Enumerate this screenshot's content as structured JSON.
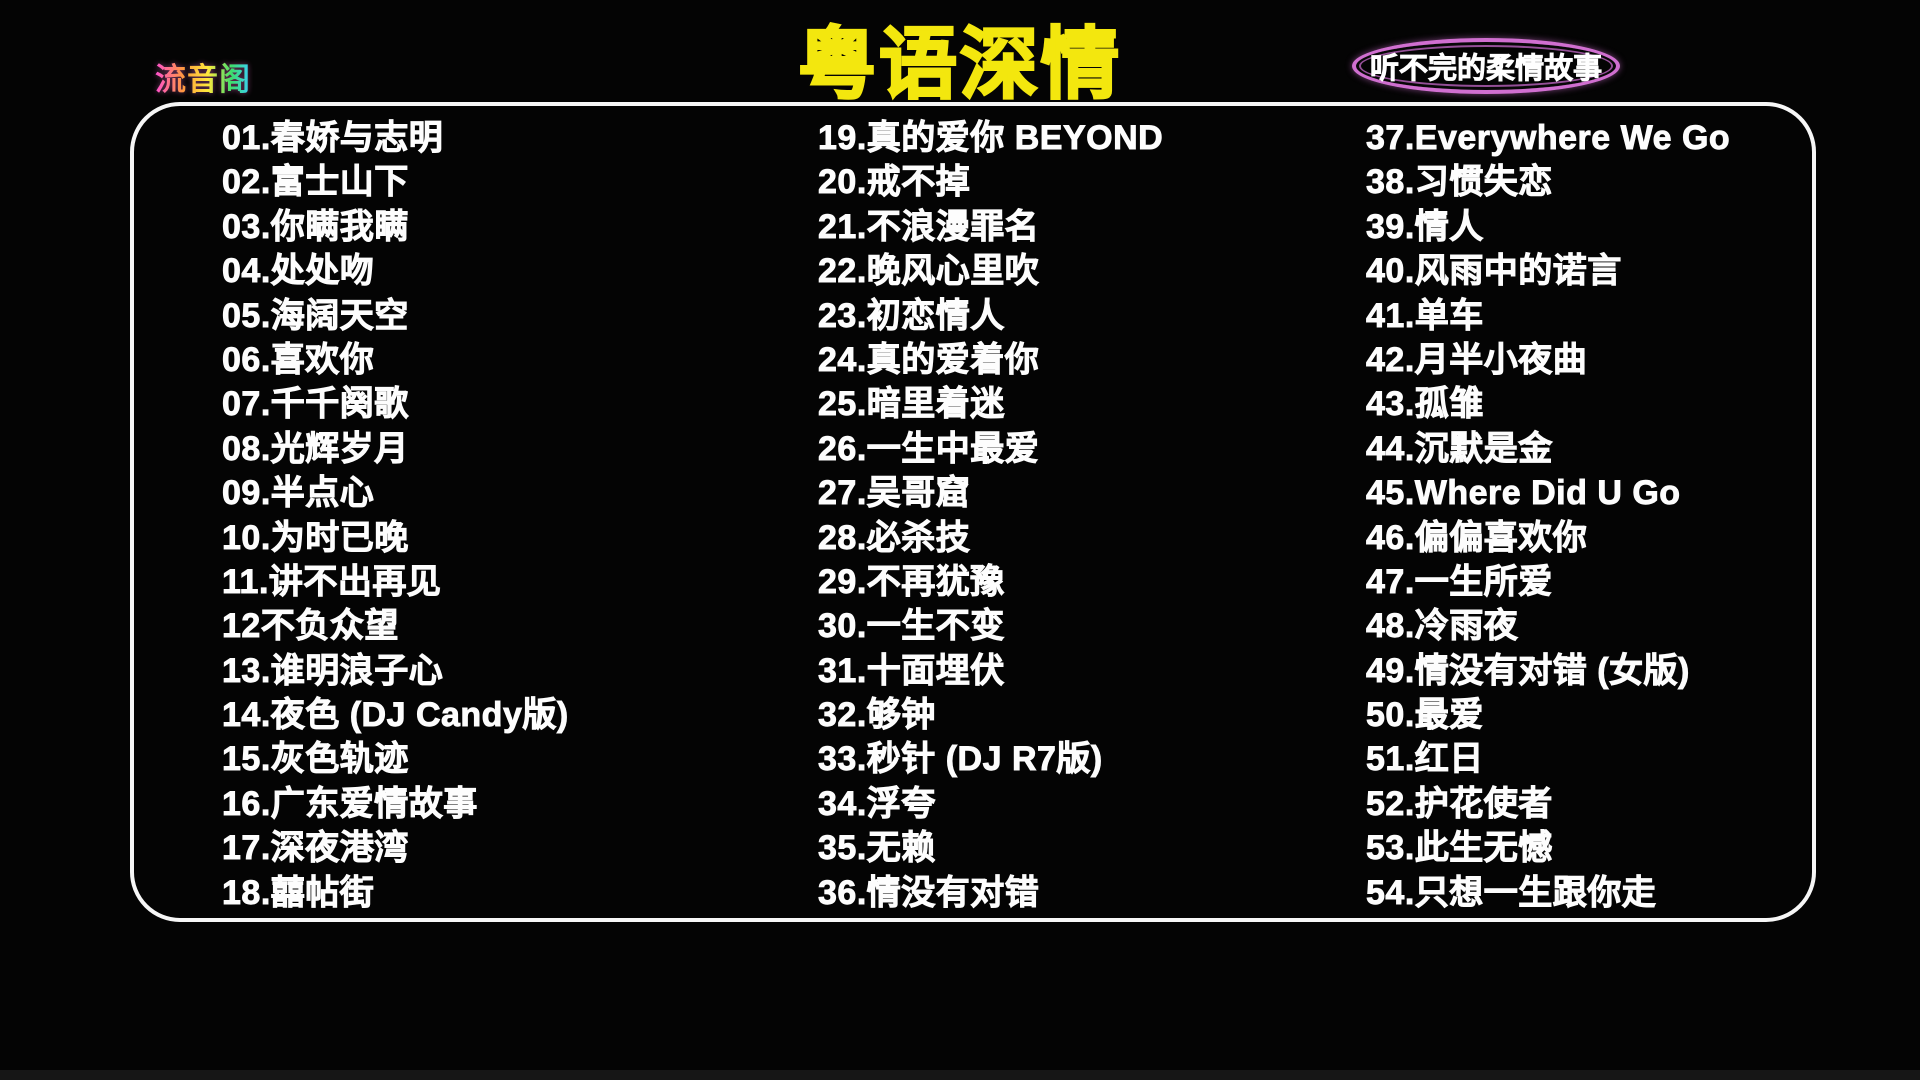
{
  "watermark": {
    "text": "流音阁"
  },
  "title": {
    "text": "粤语深情"
  },
  "badge": {
    "text": "听不完的柔情故事"
  },
  "colors": {
    "background": "#040404",
    "title_yellow": "#f3e70e",
    "badge_purple": "#d06fd0",
    "frame_white": "#f7f7f7",
    "song_white": "#fdfdfd",
    "watermark_gradient": [
      "#ff4fd0",
      "#ff9a3c",
      "#ffe93c",
      "#3cdd6e",
      "#3bd0ff"
    ]
  },
  "playlist": {
    "columns": [
      {
        "items": [
          "01.春娇与志明",
          "02.富士山下",
          "03.你瞒我瞒",
          "04.处处吻",
          "05.海阔天空",
          "06.喜欢你",
          "07.千千阕歌",
          "08.光辉岁月",
          "09.半点心",
          "10.为时已晚",
          "11.讲不出再见",
          "12不负众望",
          "13.谁明浪子心",
          "14.夜色 (DJ Candy版)",
          "15.灰色轨迹",
          "16.广东爱情故事",
          "17.深夜港湾",
          "18.囍帖街"
        ]
      },
      {
        "items": [
          "19.真的爱你 BEYOND",
          "20.戒不掉",
          "21.不浪漫罪名",
          "22.晚风心里吹",
          "23.初恋情人",
          "24.真的爱着你",
          "25.暗里着迷",
          "26.一生中最爱",
          "27.吴哥窟",
          "28.必杀技",
          "29.不再犹豫",
          "30.一生不变",
          "31.十面埋伏",
          "32.够钟",
          "33.秒针 (DJ R7版)",
          "34.浮夸",
          "35.无赖",
          "36.情没有对错"
        ]
      },
      {
        "items": [
          "37.Everywhere We Go",
          "38.习惯失恋",
          "39.情人",
          "40.风雨中的诺言",
          "41.单车",
          "42.月半小夜曲",
          "43.孤雏",
          "44.沉默是金",
          "45.Where Did U Go",
          "46.偏偏喜欢你",
          "47.一生所爱",
          "48.冷雨夜",
          "49.情没有对错 (女版)",
          "50.最爱",
          "51.红日",
          "52.护花使者",
          "53.此生无憾",
          "54.只想一生跟你走"
        ]
      }
    ]
  }
}
